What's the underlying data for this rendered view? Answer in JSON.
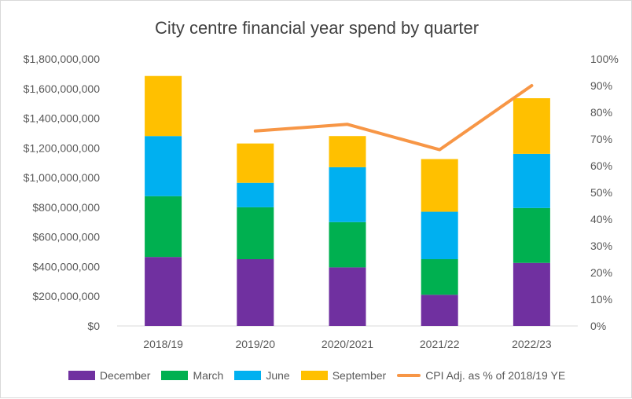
{
  "chart_data": {
    "type": "bar",
    "stacked": true,
    "title": "City centre financial year spend by quarter",
    "categories": [
      "2018/19",
      "2019/20",
      "2020/2021",
      "2021/22",
      "2022/23"
    ],
    "series": [
      {
        "name": "December",
        "color": "#7030A0",
        "values": [
          465000000,
          450000000,
          395000000,
          210000000,
          425000000
        ]
      },
      {
        "name": "March",
        "color": "#00B050",
        "values": [
          410000000,
          350000000,
          305000000,
          240000000,
          370000000
        ]
      },
      {
        "name": "June",
        "color": "#00B0F0",
        "values": [
          405000000,
          165000000,
          370000000,
          320000000,
          365000000
        ]
      },
      {
        "name": "September",
        "color": "#FFC000",
        "values": [
          405000000,
          265000000,
          210000000,
          355000000,
          375000000
        ]
      }
    ],
    "line_series": {
      "name": "CPI Adj. as % of 2018/19 YE",
      "color": "#F79646",
      "axis": "right",
      "values": [
        null,
        0.73,
        0.755,
        0.66,
        0.9
      ]
    },
    "y_left": {
      "min": 0,
      "max": 1800000000,
      "ticks": [
        "$0",
        "$200,000,000",
        "$400,000,000",
        "$600,000,000",
        "$800,000,000",
        "$1,000,000,000",
        "$1,200,000,000",
        "$1,400,000,000",
        "$1,600,000,000",
        "$1,800,000,000"
      ]
    },
    "y_right": {
      "min": 0,
      "max": 1,
      "ticks": [
        "0%",
        "10%",
        "20%",
        "30%",
        "40%",
        "50%",
        "60%",
        "70%",
        "80%",
        "90%",
        "100%"
      ]
    },
    "grid": false,
    "legend_position": "bottom"
  }
}
